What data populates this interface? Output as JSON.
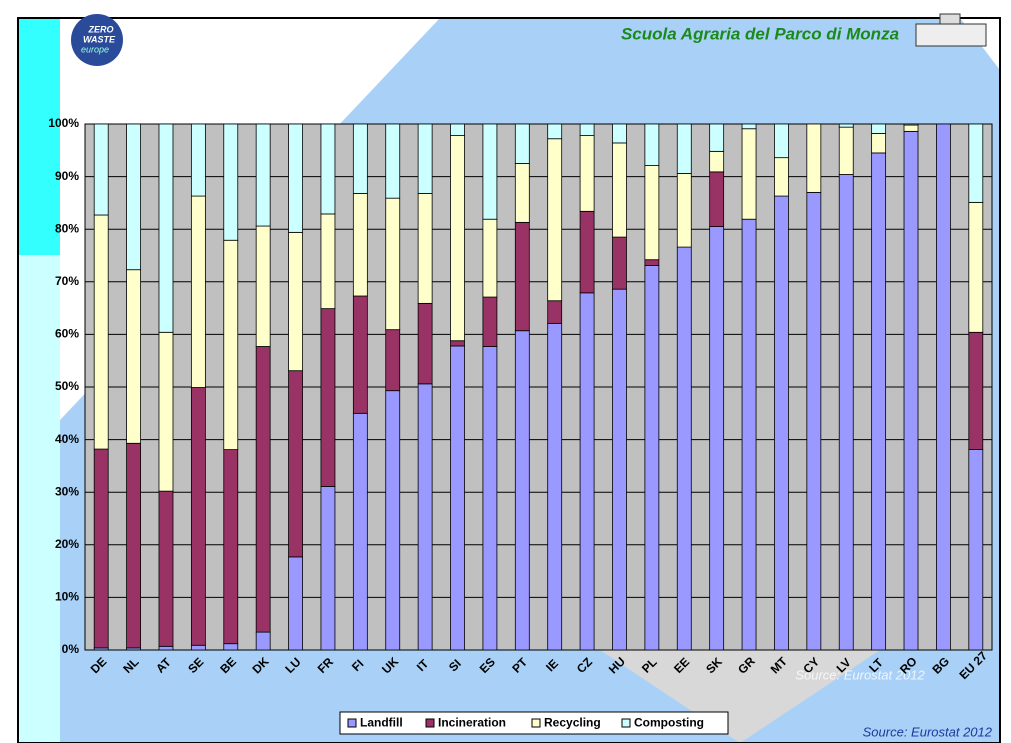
{
  "logo": {
    "lines": [
      "ZERO",
      "WASTE",
      "europe"
    ]
  },
  "chart_data": {
    "type": "stacked_bar",
    "title": "Scuola Agraria del Parco di Monza",
    "source": "Source: Eurostat 2012",
    "watermark": "Source: Eurostat 2012",
    "categories": [
      "DE",
      "NL",
      "AT",
      "SE",
      "BE",
      "DK",
      "LU",
      "FR",
      "FI",
      "UK",
      "IT",
      "SI",
      "ES",
      "PT",
      "IE",
      "CZ",
      "HU",
      "PL",
      "EE",
      "SK",
      "GR",
      "MT",
      "CY",
      "LV",
      "LT",
      "RO",
      "BG",
      "EU 27"
    ],
    "series": [
      {
        "name": "Landfill",
        "color": "#9999ff",
        "values": [
          0.4,
          0.4,
          0.7,
          0.9,
          1.2,
          3.4,
          17.7,
          31.1,
          45,
          49.3,
          50.6,
          57.8,
          57.7,
          60.7,
          62.1,
          67.9,
          68.6,
          73.1,
          76.6,
          80.5,
          81.9,
          86.3,
          87,
          90.4,
          94.5,
          98.6,
          100,
          38.1
        ]
      },
      {
        "name": "Incineration",
        "color": "#993366",
        "values": [
          37.8,
          38.9,
          29.5,
          49,
          36.9,
          54.3,
          35.4,
          33.8,
          22.3,
          11.6,
          15.3,
          1,
          9.4,
          20.6,
          4.3,
          15.5,
          9.9,
          1.1,
          0,
          10.4,
          0,
          0,
          0,
          0,
          0,
          0,
          0,
          22.3
        ]
      },
      {
        "name": "Recycling",
        "color": "#ffffcc",
        "values": [
          44.5,
          33,
          30.2,
          36.4,
          39.8,
          22.9,
          26.3,
          18,
          19.5,
          25,
          20.9,
          39,
          14.8,
          11.2,
          30.8,
          14.4,
          17.9,
          17.9,
          14,
          3.9,
          17.2,
          7.3,
          13,
          9,
          3.7,
          1.2,
          0,
          24.7
        ]
      },
      {
        "name": "Composting",
        "color": "#ccffff",
        "values": [
          17.3,
          27.7,
          39.6,
          13.7,
          22.1,
          19.4,
          20.6,
          17.1,
          13.2,
          14.1,
          13.2,
          2.2,
          18.1,
          7.5,
          2.8,
          2.2,
          3.6,
          7.9,
          9.4,
          5.2,
          0.9,
          6.4,
          0,
          0.6,
          1.8,
          0.2,
          0,
          14.9
        ]
      }
    ],
    "ylim": [
      0,
      100
    ],
    "yticks": [
      {
        "value": 0,
        "label": "0%"
      },
      {
        "value": 10,
        "label": "10%"
      },
      {
        "value": 20,
        "label": "20%"
      },
      {
        "value": 30,
        "label": "30%"
      },
      {
        "value": 40,
        "label": "40%"
      },
      {
        "value": 50,
        "label": "50%"
      },
      {
        "value": 60,
        "label": "60%"
      },
      {
        "value": 70,
        "label": "70%"
      },
      {
        "value": 80,
        "label": "80%"
      },
      {
        "value": 90,
        "label": "90%"
      },
      {
        "value": 100,
        "label": "100%"
      }
    ],
    "grid": true,
    "plot_color": "#c0c0c0",
    "legend": "bottom"
  }
}
